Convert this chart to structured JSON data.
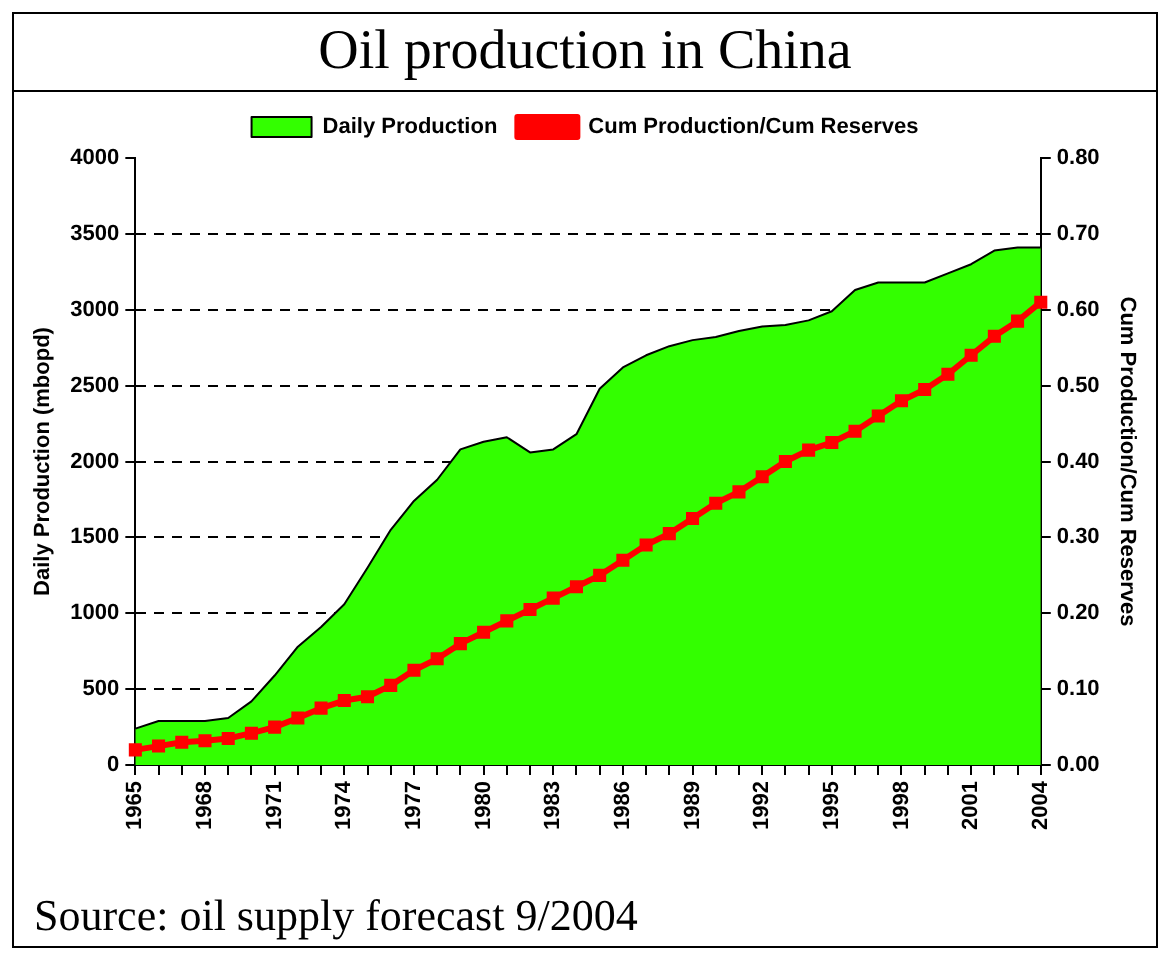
{
  "chart_data": {
    "type": "area",
    "title": "Oil production in China",
    "categories": [
      "1965",
      null,
      null,
      "1968",
      null,
      null,
      "1971",
      null,
      null,
      "1974",
      null,
      null,
      "1977",
      null,
      null,
      "1980",
      null,
      null,
      "1983",
      null,
      null,
      "1986",
      null,
      null,
      "1989",
      null,
      null,
      "1992",
      null,
      null,
      "1995",
      null,
      null,
      "1998",
      null,
      null,
      "2001",
      null,
      null,
      "2004"
    ],
    "series": [
      {
        "name": "Daily Production",
        "color": "#33ff00",
        "values": [
          240,
          290,
          290,
          290,
          310,
          420,
          590,
          780,
          910,
          1060,
          1300,
          1550,
          1740,
          1880,
          2080,
          2130,
          2160,
          2060,
          2080,
          2180,
          2480,
          2620,
          2700,
          2760,
          2800,
          2820,
          2860,
          2890,
          2900,
          2930,
          2990,
          3130,
          3180,
          3180,
          3180,
          3240,
          3300,
          3390,
          3410,
          3410
        ]
      },
      {
        "name": "Cum Production/Cum Reserves",
        "type": "line",
        "axis": "y2",
        "color": "#ff0000",
        "marker": "square",
        "values": [
          0.02,
          0.025,
          0.03,
          0.032,
          0.035,
          0.042,
          0.05,
          0.062,
          0.075,
          0.085,
          0.09,
          0.105,
          0.125,
          0.14,
          0.16,
          0.175,
          0.19,
          0.205,
          0.22,
          0.235,
          0.25,
          0.27,
          0.29,
          0.305,
          0.325,
          0.345,
          0.36,
          0.38,
          0.4,
          0.415,
          0.425,
          0.44,
          0.46,
          0.48,
          0.495,
          0.515,
          0.54,
          0.565,
          0.585,
          0.61
        ]
      }
    ],
    "ylabel": "Daily Production (mbopd)",
    "y2label": "Cum Production/Cum Reserves",
    "ylim": [
      0,
      4000
    ],
    "yticks": [
      0,
      500,
      1000,
      1500,
      2000,
      2500,
      3000,
      3500,
      4000
    ],
    "y2lim": [
      0,
      0.8
    ],
    "y2ticks": [
      {
        "value": 0,
        "label": "0.00"
      },
      {
        "value": 0.1,
        "label": "0.10"
      },
      {
        "value": 0.2,
        "label": "0.20"
      },
      {
        "value": 0.3,
        "label": "0.30"
      },
      {
        "value": 0.4,
        "label": "0.40"
      },
      {
        "value": 0.5,
        "label": "0.50"
      },
      {
        "value": 0.6,
        "label": "0.60"
      },
      {
        "value": 0.7,
        "label": "0.70"
      },
      {
        "value": 0.8,
        "label": "0.80"
      }
    ],
    "grid": "y",
    "legend": "top",
    "annotations": [
      "Source: oil supply forecast 9/2004"
    ]
  }
}
